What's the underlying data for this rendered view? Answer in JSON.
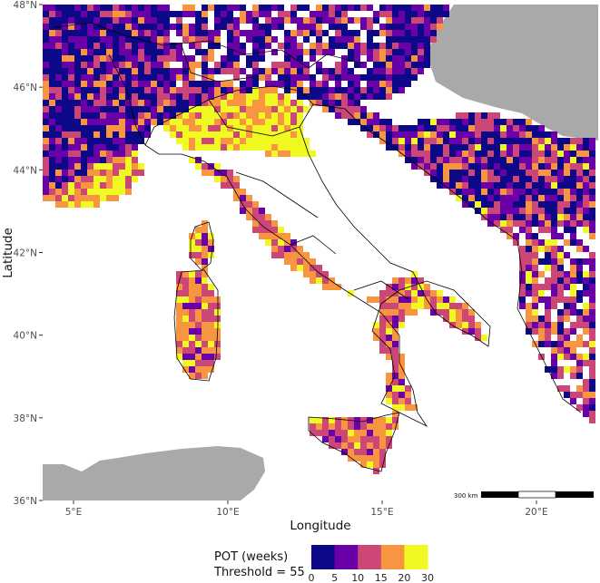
{
  "map": {
    "xlabel": "Longitude",
    "ylabel": "Latitude",
    "lon_range": [
      4,
      22
    ],
    "lat_range": [
      36,
      48
    ],
    "x_ticks": [
      {
        "value": 5,
        "label": "5°E"
      },
      {
        "value": 10,
        "label": "10°E"
      },
      {
        "value": 15,
        "label": "15°E"
      },
      {
        "value": 20,
        "label": "20°E"
      }
    ],
    "y_ticks": [
      {
        "value": 36,
        "label": "36°N"
      },
      {
        "value": 38,
        "label": "38°N"
      },
      {
        "value": 40,
        "label": "40°N"
      },
      {
        "value": 42,
        "label": "42°N"
      },
      {
        "value": 44,
        "label": "44°N"
      },
      {
        "value": 46,
        "label": "46°N"
      },
      {
        "value": 48,
        "label": "48°N"
      }
    ],
    "scale_bar": {
      "label": "300 km"
    }
  },
  "legend": {
    "title_line1": "POT (weeks)",
    "title_line2": "Threshold = 55",
    "breaks": [
      "0",
      "5",
      "10",
      "15",
      "20",
      "30"
    ],
    "colors": [
      "#0d0887",
      "#6a00a8",
      "#cc4778",
      "#f89540",
      "#f0f921"
    ]
  },
  "colors": {
    "land_outside": "#a9a9a9",
    "sea": "#ffffff",
    "border": "#000000"
  }
}
